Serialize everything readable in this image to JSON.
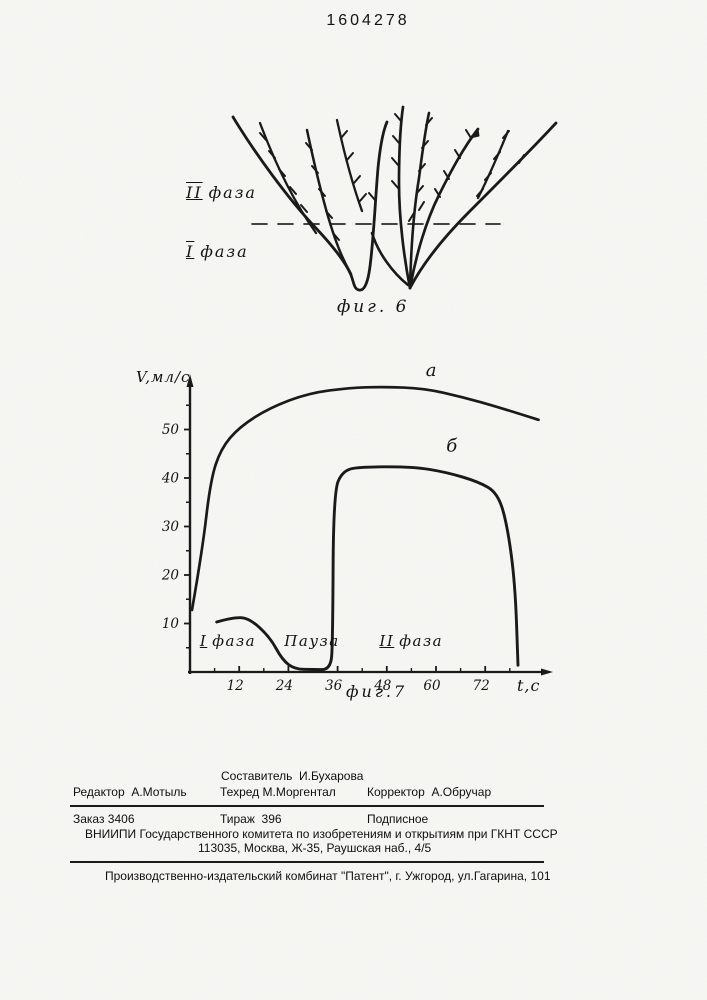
{
  "page": {
    "patent_number": "1604278"
  },
  "figure6": {
    "phase2": {
      "numeral": "II",
      "word": "фаза"
    },
    "phase1": {
      "numeral": "I",
      "word": "фаза"
    },
    "caption": "фиг. 6"
  },
  "figure7": {
    "caption": "фиг.7"
  },
  "chart_data": {
    "type": "line",
    "title": "",
    "ylabel": "V,мл/с",
    "xlabel": "t,c",
    "xlim": [
      0,
      88
    ],
    "ylim": [
      0,
      62
    ],
    "xticks": [
      12,
      24,
      36,
      48,
      60,
      72
    ],
    "yticks": [
      10,
      20,
      30,
      40,
      50
    ],
    "x_minor_step": 6,
    "y_minor_step": 5,
    "grid": false,
    "legend_position": "inline",
    "series": [
      {
        "name": "a",
        "label_pos": [
          57.5,
          61
        ],
        "points": [
          [
            0.5,
            12.8
          ],
          [
            3,
            25
          ],
          [
            5,
            39.5
          ],
          [
            7.5,
            46
          ],
          [
            12,
            50.5
          ],
          [
            19.5,
            54.5
          ],
          [
            29,
            57.5
          ],
          [
            39,
            58.6
          ],
          [
            47,
            58.8
          ],
          [
            57,
            58.5
          ],
          [
            66.5,
            56.7
          ],
          [
            76,
            54.4
          ],
          [
            85,
            52
          ]
        ]
      },
      {
        "name": "б",
        "label_pos": [
          62.5,
          45.5
        ],
        "points": [
          [
            6.5,
            10.3
          ],
          [
            10.5,
            11.3
          ],
          [
            14.5,
            11.1
          ],
          [
            19.5,
            7.2
          ],
          [
            22.5,
            2.5
          ],
          [
            25.5,
            0.6
          ],
          [
            30,
            0.5
          ],
          [
            34.3,
            0.5
          ],
          [
            34.8,
            6
          ],
          [
            35,
            37.1
          ],
          [
            37.3,
            41.6
          ],
          [
            42,
            42.3
          ],
          [
            54.5,
            42.3
          ],
          [
            62.5,
            41.2
          ],
          [
            70.5,
            39.2
          ],
          [
            75,
            36.9
          ],
          [
            77.3,
            30.7
          ],
          [
            79.3,
            18.4
          ],
          [
            80,
            1.4
          ]
        ]
      }
    ],
    "annotations": [
      {
        "numeral": "I",
        "word": "фаза",
        "t": 2.4,
        "v": 7.6
      },
      {
        "numeral": "",
        "word": "Пауза",
        "t": 23,
        "v": 7.6
      },
      {
        "numeral": "II",
        "word": "фаза",
        "t": 46.2,
        "v": 7.6
      }
    ]
  },
  "imprint": {
    "compiler": "Составитель  И.Бухарова",
    "editor": "Редактор  А.Мотыль",
    "techred": "Техред М.Моргентал",
    "corrector": "Корректор  А.Обручар",
    "order": "Заказ 3406",
    "print_run": "Тираж  396",
    "subscription": "Подписное",
    "committee": "ВНИИПИ Государственного комитета по изобретениям и открытиям при ГКНТ СССР",
    "address": "113035, Москва, Ж-35, Раушская наб., 4/5",
    "printer": "Производственно-издательский комбинат \"Патент\", г. Ужгород, ул.Гагарина, 101"
  }
}
